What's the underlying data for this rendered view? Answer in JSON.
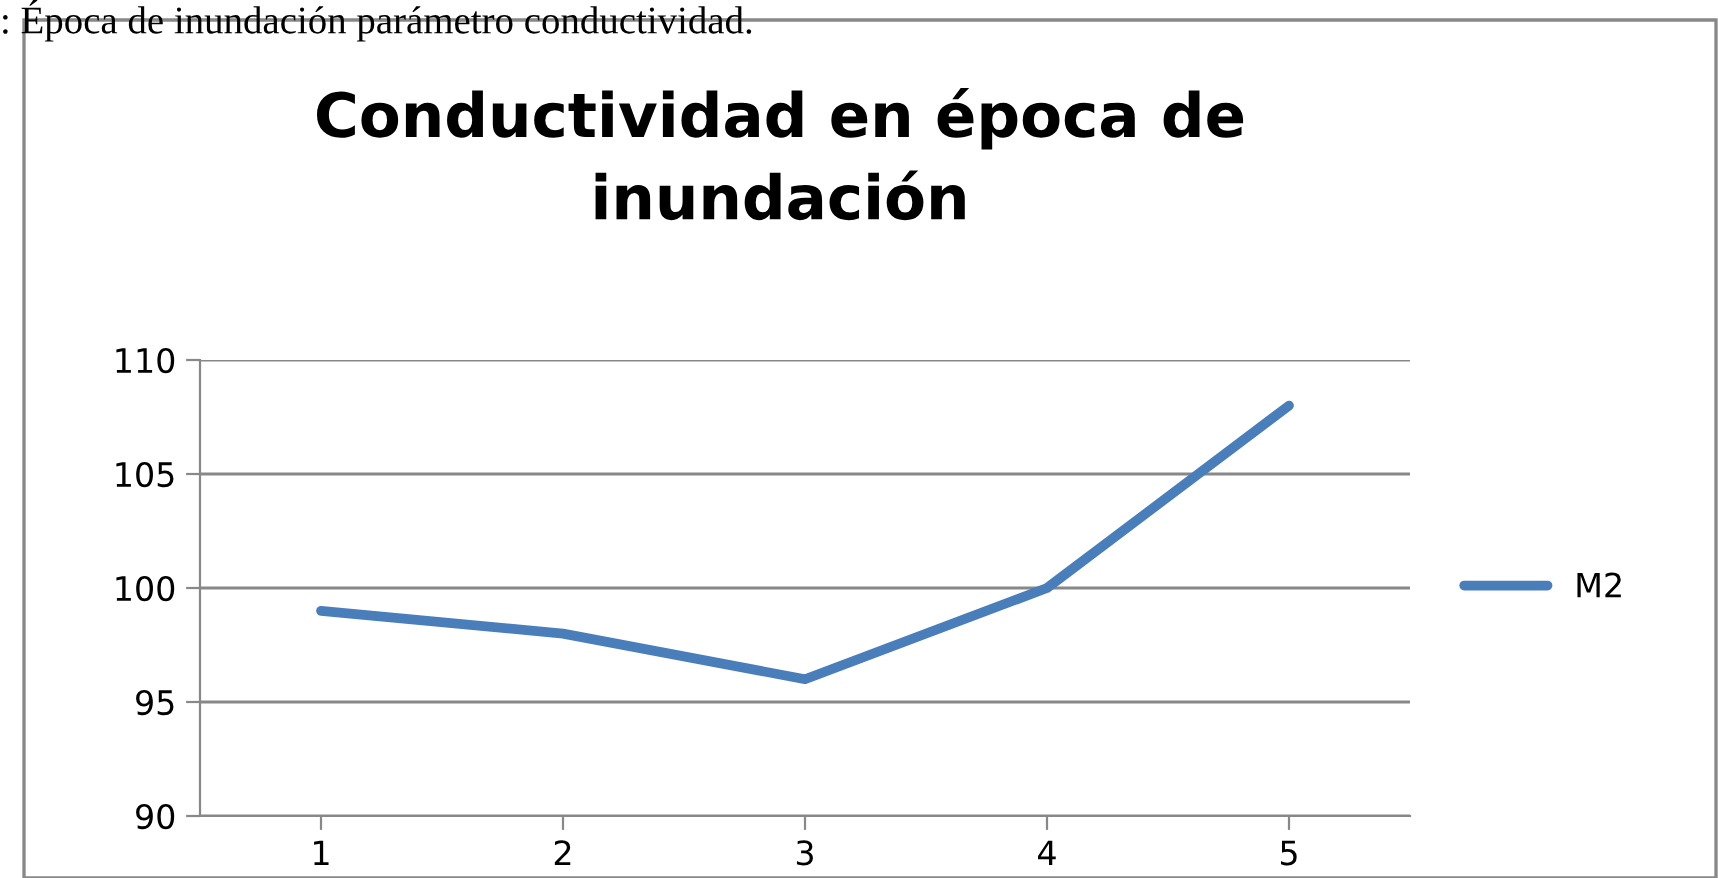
{
  "chart_data": {
    "type": "line",
    "title": "Conductividad en época de\ninundación",
    "annotations": [
      ": Época de inundación parámetro conductividad."
    ],
    "categories": [
      "1",
      "2",
      "3",
      "4",
      "5"
    ],
    "series": [
      {
        "name": "M2",
        "color": "#4a7ebb",
        "values": [
          99,
          98,
          96,
          100,
          108
        ]
      }
    ],
    "ylim": [
      90,
      110
    ],
    "yticks": [
      90,
      95,
      100,
      105,
      110
    ],
    "grid": "y",
    "legend": "right",
    "marker": "none",
    "line_style": "solid"
  }
}
